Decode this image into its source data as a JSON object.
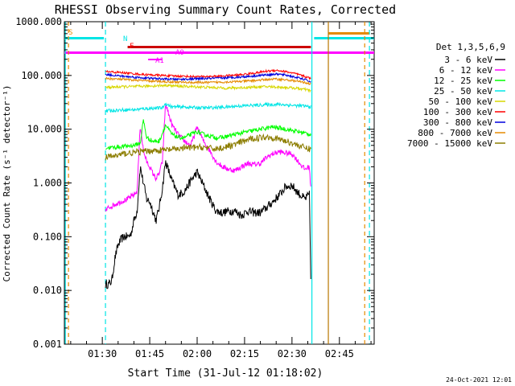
{
  "chart_data": {
    "type": "line",
    "title": "RHESSI Observing Summary Count Rates, Corrected",
    "xlabel": "Start Time (31-Jul-12 01:18:02)",
    "ylabel": "Corrected Count Rate (s⁻¹ detector⁻¹)",
    "y_scale": "log",
    "ylim": [
      0.001,
      1000
    ],
    "xlim_minutes": [
      78,
      176
    ],
    "x_ticks": [
      {
        "t": 90,
        "label": "01:30"
      },
      {
        "t": 105,
        "label": "01:45"
      },
      {
        "t": 120,
        "label": "02:00"
      },
      {
        "t": 135,
        "label": "02:15"
      },
      {
        "t": 150,
        "label": "02:30"
      },
      {
        "t": 165,
        "label": "02:45"
      }
    ],
    "y_ticks": [
      {
        "v": 0.001,
        "label": "0.001"
      },
      {
        "v": 0.01,
        "label": "0.010"
      },
      {
        "v": 0.1,
        "label": "0.100"
      },
      {
        "v": 1,
        "label": "1.000"
      },
      {
        "v": 10,
        "label": "10.000"
      },
      {
        "v": 100,
        "label": "100.000"
      },
      {
        "v": 1000,
        "label": "1000.000"
      }
    ],
    "legend_title": "Det 1,3,5,6,9",
    "legend_position": "right",
    "data_start_min": 91,
    "data_end_min": 156,
    "series": [
      {
        "name": "3 - 6 keV",
        "color": "#000000",
        "x": [
          91,
          92,
          93,
          94,
          95,
          96,
          97,
          98,
          99,
          100,
          101,
          102,
          103,
          104,
          105,
          106,
          107,
          108,
          109,
          110,
          112,
          114,
          116,
          118,
          120,
          122,
          124,
          126,
          128,
          130,
          132,
          134,
          136,
          138,
          140,
          142,
          144,
          146,
          148,
          150,
          152,
          154,
          155.5,
          156
        ],
        "y": [
          0.013,
          0.013,
          0.015,
          0.04,
          0.07,
          0.09,
          0.1,
          0.1,
          0.11,
          0.2,
          0.3,
          2.0,
          1.0,
          0.5,
          0.45,
          0.3,
          0.2,
          0.35,
          0.8,
          2.5,
          1.1,
          0.6,
          0.7,
          1.1,
          1.6,
          0.9,
          0.5,
          0.3,
          0.28,
          0.3,
          0.3,
          0.25,
          0.3,
          0.28,
          0.28,
          0.35,
          0.45,
          0.6,
          0.85,
          0.9,
          0.65,
          0.5,
          0.6,
          0.013
        ]
      },
      {
        "name": "6 - 12 keV",
        "color": "#ff00ff",
        "x": [
          91,
          92,
          94,
          96,
          98,
          100,
          101,
          102,
          103,
          104,
          105,
          106,
          107,
          108,
          109,
          110,
          112,
          114,
          116,
          118,
          120,
          122,
          124,
          126,
          128,
          130,
          132,
          134,
          136,
          138,
          140,
          142,
          144,
          146,
          148,
          150,
          152,
          154,
          155.5,
          156
        ],
        "y": [
          0.3,
          0.35,
          0.4,
          0.45,
          0.5,
          0.6,
          0.7,
          12,
          4,
          2.5,
          2.0,
          1.5,
          1.2,
          1.5,
          2.5,
          30,
          12,
          8,
          6,
          5,
          11,
          6,
          4,
          2.5,
          2.0,
          1.8,
          1.7,
          2.0,
          2.3,
          2.2,
          2.3,
          3.0,
          3.5,
          3.8,
          3.6,
          3.5,
          2.5,
          1.8,
          2.0,
          0.7
        ]
      },
      {
        "name": "12 - 25 keV",
        "color": "#00ff00",
        "x": [
          91,
          94,
          97,
          100,
          102,
          103,
          104,
          106,
          108,
          110,
          112,
          114,
          116,
          118,
          120,
          122,
          124,
          126,
          128,
          130,
          132,
          134,
          136,
          138,
          140,
          142,
          144,
          146,
          148,
          150,
          152,
          154,
          156
        ],
        "y": [
          4.5,
          4.6,
          4.8,
          5,
          5.5,
          15,
          7,
          6,
          6,
          12,
          8,
          7,
          7,
          8,
          9,
          8,
          7.5,
          7,
          7,
          7.5,
          8,
          8.5,
          9,
          9.5,
          10,
          10.5,
          11,
          10.5,
          10,
          9.5,
          9,
          8.5,
          8
        ]
      },
      {
        "name": "25 - 50 keV",
        "color": "#00e5e5",
        "x": [
          91,
          94,
          97,
          100,
          103,
          106,
          109,
          110,
          112,
          115,
          118,
          121,
          124,
          127,
          130,
          133,
          136,
          139,
          142,
          145,
          148,
          151,
          154,
          156
        ],
        "y": [
          22,
          22.5,
          23,
          23,
          24,
          24.5,
          25,
          30,
          26,
          26,
          25.5,
          25,
          25,
          25.5,
          26,
          27,
          27.5,
          28,
          28.5,
          29,
          28.5,
          27.5,
          27,
          26
        ]
      },
      {
        "name": "50 - 100 keV",
        "color": "#d7d700",
        "x": [
          91,
          94,
          97,
          100,
          103,
          106,
          109,
          110,
          112,
          115,
          118,
          121,
          124,
          127,
          130,
          133,
          136,
          139,
          142,
          145,
          148,
          151,
          154,
          156
        ],
        "y": [
          60,
          61,
          62,
          62,
          63,
          64,
          65,
          66,
          64,
          63,
          62,
          61,
          60,
          59,
          58,
          59,
          60,
          61,
          62,
          61,
          60,
          58,
          55,
          52
        ]
      },
      {
        "name": "100 - 300 keV",
        "color": "#ff0000",
        "x": [
          91,
          94,
          97,
          100,
          103,
          106,
          109,
          112,
          115,
          118,
          121,
          124,
          127,
          130,
          133,
          136,
          139,
          142,
          145,
          148,
          151,
          154,
          156
        ],
        "y": [
          118,
          115,
          112,
          108,
          104,
          102,
          100,
          98,
          97,
          96,
          95,
          96,
          97,
          99,
          102,
          107,
          113,
          120,
          125,
          118,
          108,
          96,
          88
        ]
      },
      {
        "name": "300 - 800 keV",
        "color": "#0000dd",
        "x": [
          91,
          94,
          97,
          100,
          103,
          106,
          109,
          112,
          115,
          118,
          121,
          124,
          127,
          130,
          133,
          136,
          139,
          142,
          145,
          148,
          151,
          154,
          156
        ],
        "y": [
          105,
          100,
          96,
          93,
          90,
          88,
          86,
          85,
          85,
          86,
          87,
          88,
          89,
          91,
          93,
          96,
          99,
          103,
          106,
          102,
          93,
          84,
          76
        ]
      },
      {
        "name": "800 - 7000 keV",
        "color": "#e58a00",
        "x": [
          91,
          94,
          97,
          100,
          103,
          106,
          109,
          112,
          115,
          118,
          121,
          124,
          127,
          130,
          133,
          136,
          139,
          142,
          145,
          148,
          151,
          154,
          156
        ],
        "y": [
          88,
          86,
          84,
          82,
          80,
          78,
          77,
          76,
          75,
          74,
          74,
          74,
          75,
          76,
          77,
          79,
          81,
          84,
          86,
          83,
          79,
          74,
          70
        ]
      },
      {
        "name": "7000 - 15000 keV",
        "color": "#8c7d00",
        "x": [
          91,
          94,
          97,
          100,
          102,
          104,
          106,
          108,
          110,
          112,
          114,
          116,
          118,
          120,
          122,
          124,
          126,
          128,
          130,
          132,
          134,
          136,
          138,
          140,
          142,
          144,
          146,
          148,
          150,
          152,
          154,
          156
        ],
        "y": [
          3.0,
          3.2,
          3.5,
          3.7,
          3.8,
          3.9,
          4.0,
          4.0,
          4.1,
          4.2,
          4.3,
          4.5,
          4.5,
          4.6,
          4.6,
          4.4,
          4.3,
          4.5,
          4.8,
          5.2,
          5.8,
          6.3,
          6.8,
          7.0,
          7.2,
          7.0,
          6.5,
          6.0,
          5.5,
          5.0,
          4.5,
          4.2
        ]
      }
    ],
    "attenuator_bars": [
      {
        "label": "S",
        "color": "#e58a00"
      },
      {
        "label": "N",
        "color": "#00e5e5"
      },
      {
        "label": "F",
        "color": "#ff0000"
      },
      {
        "label": "A0",
        "color": "#ff00ff"
      },
      {
        "label": "A1",
        "color": "#ff00ff"
      }
    ],
    "footer_date": "24-Oct-2021 12:01"
  }
}
